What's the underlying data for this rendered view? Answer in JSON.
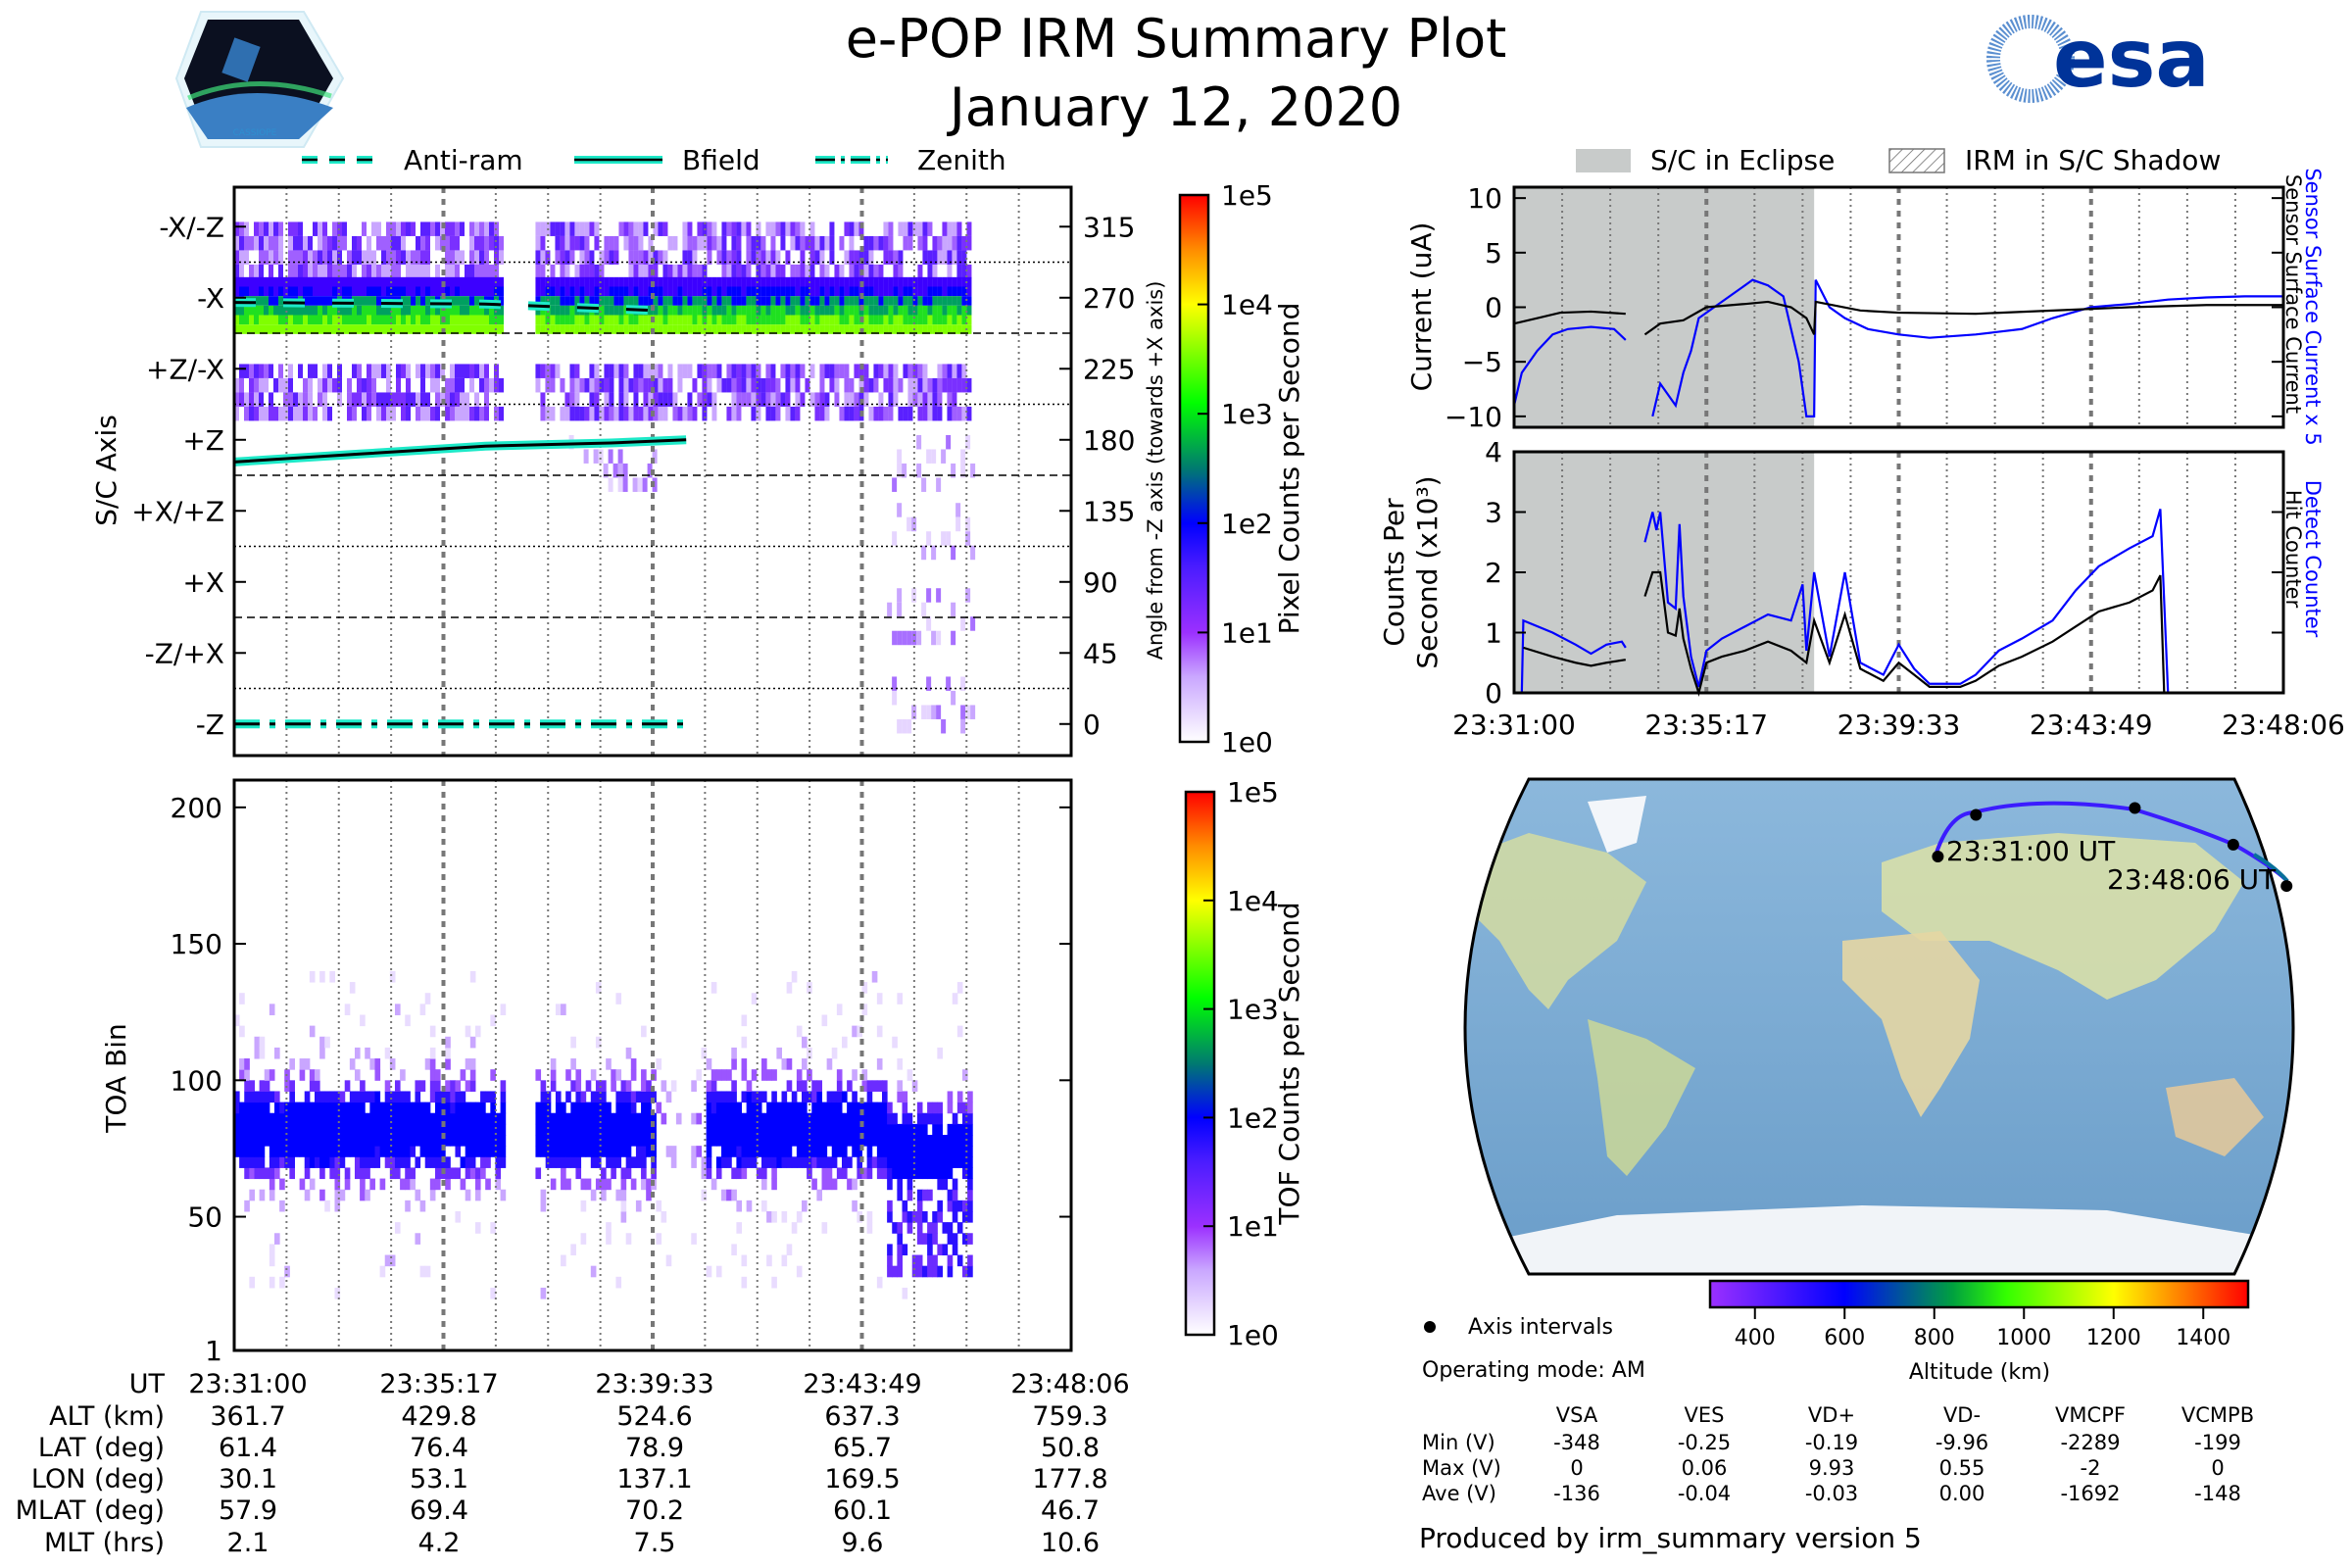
{
  "header": {
    "title": "e-POP IRM Summary Plot",
    "date": "January 12, 2020",
    "left_logo": "CASSIOPE",
    "right_logo": "esa"
  },
  "colors": {
    "teal_line": "#1de9c8",
    "blue_series": "#0000ff",
    "black_series": "#000000",
    "eclipse_shade": "#c8cbca",
    "orbit_track": "#3b1cff"
  },
  "chart_data": [
    {
      "id": "sc_axis_spectrogram",
      "type": "heatmap",
      "ylabel": "S/C Axis",
      "ylabel_right": "Angle from -Z axis (towards +X axis)",
      "y_categories": [
        "-X/-Z",
        "-X",
        "+Z/-X",
        "+Z",
        "+X/+Z",
        "+X",
        "-Z/+X",
        "-Z"
      ],
      "y_right_ticks": [
        315,
        270,
        225,
        180,
        135,
        90,
        45,
        0
      ],
      "ylim": [
        -20,
        340
      ],
      "legend": [
        {
          "label": "Anti-ram",
          "style": "dashed"
        },
        {
          "label": "Bfield",
          "style": "solid"
        },
        {
          "label": "Zenith",
          "style": "dashdot"
        }
      ],
      "colorbar": {
        "label": "Pixel Counts per Second",
        "scale": "log",
        "ticks": [
          "1e0",
          "1e1",
          "1e2",
          "1e3",
          "1e4",
          "1e5"
        ]
      },
      "bands": [
        {
          "angle_center": 300,
          "intensity": "low",
          "x_ranges": [
            [
              0,
              0.32
            ],
            [
              0.36,
              0.88
            ]
          ]
        },
        {
          "angle_center": 265,
          "intensity": "high",
          "x_ranges": [
            [
              0,
              0.32
            ],
            [
              0.36,
              0.88
            ]
          ]
        },
        {
          "angle_center": 210,
          "intensity": "low",
          "x_ranges": [
            [
              0,
              0.32
            ],
            [
              0.36,
              0.88
            ]
          ]
        },
        {
          "angle_center": 165,
          "intensity": "very_low",
          "x_ranges": [
            [
              0.4,
              0.5
            ],
            [
              0.78,
              0.88
            ]
          ]
        },
        {
          "angle_center": 122,
          "intensity": "very_low",
          "x_ranges": [
            [
              0.78,
              0.88
            ]
          ]
        },
        {
          "angle_center": 68,
          "intensity": "very_low",
          "x_ranges": [
            [
              0.78,
              0.88
            ]
          ]
        },
        {
          "angle_center": 12,
          "intensity": "very_low",
          "x_ranges": [
            [
              0.78,
              0.88
            ]
          ]
        }
      ],
      "lines": [
        {
          "name": "Anti-ram",
          "points": [
            [
              0,
              267
            ],
            [
              0.3,
              266
            ],
            [
              0.5,
              262
            ]
          ]
        },
        {
          "name": "Bfield",
          "points": [
            [
              0,
              166
            ],
            [
              0.15,
              171
            ],
            [
              0.3,
              176
            ],
            [
              0.45,
              178
            ],
            [
              0.54,
              180
            ]
          ]
        },
        {
          "name": "Zenith",
          "points": [
            [
              0,
              0
            ],
            [
              0.54,
              0
            ]
          ]
        }
      ]
    },
    {
      "id": "toa_spectrogram",
      "type": "heatmap",
      "ylabel": "TOA Bin",
      "yticks": [
        1,
        50,
        100,
        150,
        200
      ],
      "ylim": [
        1,
        210
      ],
      "colorbar": {
        "label": "TOF Counts per Second",
        "scale": "log",
        "ticks": [
          "1e0",
          "1e1",
          "1e2",
          "1e3",
          "1e4",
          "1e5"
        ]
      },
      "band": {
        "center": 80,
        "half_width": 20
      },
      "gaps": [
        [
          0.32,
          0.36
        ],
        [
          0.53,
          0.545
        ]
      ],
      "data_end": 0.88
    },
    {
      "id": "surface_current",
      "type": "line",
      "ylabel": "Current (uA)",
      "yticks": [
        10,
        5,
        0,
        -5,
        -10
      ],
      "ylim": [
        -11,
        11
      ],
      "right_labels": [
        "Sensor Surface Current x 5",
        "Sensor Surface Current"
      ],
      "legend": [
        {
          "label": "S/C in Eclipse",
          "style": "shade"
        },
        {
          "label": "IRM in S/C Shadow",
          "style": "hatch"
        }
      ],
      "eclipse_range": [
        0,
        0.39
      ],
      "series": [
        {
          "name": "Sensor Surface Current x 5",
          "color": "#0000ff",
          "points": [
            [
              0,
              -9
            ],
            [
              0.01,
              -6
            ],
            [
              0.03,
              -4
            ],
            [
              0.05,
              -2.5
            ],
            [
              0.07,
              -2
            ],
            [
              0.1,
              -1.8
            ],
            [
              0.13,
              -2
            ],
            [
              0.145,
              -3
            ],
            null,
            [
              0.18,
              -10
            ],
            [
              0.19,
              -7
            ],
            [
              0.2,
              -8
            ],
            [
              0.21,
              -9
            ],
            [
              0.22,
              -6
            ],
            [
              0.23,
              -4
            ],
            [
              0.24,
              -1
            ],
            [
              0.26,
              0
            ],
            [
              0.28,
              1
            ],
            [
              0.3,
              2
            ],
            [
              0.31,
              2.5
            ],
            [
              0.33,
              2
            ],
            [
              0.35,
              1
            ],
            [
              0.36,
              -2
            ],
            [
              0.37,
              -5
            ],
            [
              0.38,
              -10
            ],
            [
              0.39,
              -10
            ],
            [
              0.392,
              2.5
            ],
            [
              0.41,
              0
            ],
            [
              0.43,
              -1
            ],
            [
              0.46,
              -2
            ],
            [
              0.5,
              -2.5
            ],
            [
              0.54,
              -2.8
            ],
            [
              0.6,
              -2.5
            ],
            [
              0.66,
              -2
            ],
            [
              0.7,
              -1
            ],
            [
              0.75,
              0
            ],
            [
              0.8,
              0.3
            ],
            [
              0.85,
              0.7
            ],
            [
              0.9,
              0.9
            ],
            [
              0.95,
              1
            ],
            [
              1,
              1
            ]
          ]
        },
        {
          "name": "Sensor Surface Current",
          "color": "#000000",
          "points": [
            [
              0,
              -1.5
            ],
            [
              0.03,
              -1
            ],
            [
              0.06,
              -0.5
            ],
            [
              0.1,
              -0.4
            ],
            [
              0.145,
              -0.6
            ],
            null,
            [
              0.17,
              -2.5
            ],
            [
              0.19,
              -1.5
            ],
            [
              0.22,
              -1.2
            ],
            [
              0.25,
              0
            ],
            [
              0.3,
              0.3
            ],
            [
              0.33,
              0.5
            ],
            [
              0.36,
              0
            ],
            [
              0.38,
              -1
            ],
            [
              0.39,
              -2.5
            ],
            [
              0.392,
              0.5
            ],
            [
              0.45,
              -0.3
            ],
            [
              0.5,
              -0.5
            ],
            [
              0.6,
              -0.6
            ],
            [
              0.7,
              -0.3
            ],
            [
              0.8,
              0
            ],
            [
              0.9,
              0.2
            ],
            [
              1,
              0.2
            ]
          ]
        }
      ]
    },
    {
      "id": "counts",
      "type": "line",
      "ylabel": "Counts Per Second (x10³)",
      "yticks": [
        0,
        1,
        2,
        3,
        4
      ],
      "ylim": [
        0,
        4
      ],
      "right_labels": [
        "Detect Counter",
        "Hit Counter"
      ],
      "eclipse_range": [
        0,
        0.39
      ],
      "xticks": [
        "23:31:00",
        "23:35:17",
        "23:39:33",
        "23:43:49",
        "23:48:06"
      ],
      "series": [
        {
          "name": "Detect Counter",
          "color": "#0000ff",
          "points": [
            [
              0,
              0
            ],
            [
              0.01,
              0
            ],
            [
              0.012,
              1.2
            ],
            [
              0.05,
              1
            ],
            [
              0.08,
              0.8
            ],
            [
              0.1,
              0.65
            ],
            [
              0.12,
              0.8
            ],
            [
              0.14,
              0.85
            ],
            [
              0.145,
              0.75
            ],
            null,
            [
              0.17,
              2.5
            ],
            [
              0.18,
              3
            ],
            [
              0.185,
              2.7
            ],
            [
              0.19,
              3
            ],
            [
              0.2,
              1.5
            ],
            [
              0.21,
              1.4
            ],
            [
              0.215,
              2.8
            ],
            [
              0.22,
              1.6
            ],
            [
              0.23,
              0.6
            ],
            [
              0.24,
              0.1
            ],
            [
              0.25,
              0.7
            ],
            [
              0.27,
              0.9
            ],
            [
              0.3,
              1.1
            ],
            [
              0.33,
              1.3
            ],
            [
              0.36,
              1.2
            ],
            [
              0.375,
              1.8
            ],
            [
              0.38,
              0.7
            ],
            [
              0.39,
              2
            ],
            [
              0.41,
              0.6
            ],
            [
              0.43,
              2
            ],
            [
              0.45,
              0.5
            ],
            [
              0.48,
              0.3
            ],
            [
              0.5,
              0.8
            ],
            [
              0.52,
              0.4
            ],
            [
              0.54,
              0.15
            ],
            [
              0.58,
              0.15
            ],
            [
              0.6,
              0.3
            ],
            [
              0.63,
              0.7
            ],
            [
              0.66,
              0.9
            ],
            [
              0.7,
              1.2
            ],
            [
              0.73,
              1.7
            ],
            [
              0.76,
              2.1
            ],
            [
              0.8,
              2.4
            ],
            [
              0.83,
              2.6
            ],
            [
              0.84,
              3.05
            ],
            [
              0.85,
              0
            ],
            [
              1,
              0
            ]
          ]
        },
        {
          "name": "Hit Counter",
          "color": "#000000",
          "points": [
            [
              0.012,
              0.75
            ],
            [
              0.05,
              0.6
            ],
            [
              0.08,
              0.5
            ],
            [
              0.1,
              0.45
            ],
            [
              0.12,
              0.5
            ],
            [
              0.145,
              0.55
            ],
            null,
            [
              0.17,
              1.6
            ],
            [
              0.18,
              2
            ],
            [
              0.19,
              2
            ],
            [
              0.2,
              1
            ],
            [
              0.21,
              0.95
            ],
            [
              0.215,
              1.4
            ],
            [
              0.22,
              0.9
            ],
            [
              0.23,
              0.4
            ],
            [
              0.24,
              0
            ],
            [
              0.25,
              0.5
            ],
            [
              0.27,
              0.6
            ],
            [
              0.3,
              0.7
            ],
            [
              0.33,
              0.85
            ],
            [
              0.36,
              0.7
            ],
            [
              0.38,
              0.5
            ],
            [
              0.39,
              1.2
            ],
            [
              0.41,
              0.5
            ],
            [
              0.43,
              1.3
            ],
            [
              0.45,
              0.4
            ],
            [
              0.48,
              0.2
            ],
            [
              0.5,
              0.5
            ],
            [
              0.52,
              0.3
            ],
            [
              0.54,
              0.1
            ],
            [
              0.58,
              0.1
            ],
            [
              0.6,
              0.2
            ],
            [
              0.63,
              0.45
            ],
            [
              0.66,
              0.6
            ],
            [
              0.7,
              0.85
            ],
            [
              0.73,
              1.1
            ],
            [
              0.76,
              1.35
            ],
            [
              0.8,
              1.5
            ],
            [
              0.83,
              1.7
            ],
            [
              0.84,
              1.95
            ],
            [
              0.845,
              0
            ]
          ]
        }
      ]
    },
    {
      "id": "orbit_map",
      "type": "scatter",
      "annotations": [
        "23:31:00 UT",
        "23:48:06 UT"
      ],
      "track_lonlat": [
        [
          30.1,
          61.4
        ],
        [
          53.1,
          76.4
        ],
        [
          137.1,
          78.9
        ],
        [
          169.5,
          65.7
        ],
        [
          177.8,
          50.8
        ]
      ],
      "colorbar": {
        "label": "Altitude (km)",
        "ticks": [
          400,
          600,
          800,
          1000,
          1200,
          1400
        ],
        "range": [
          300,
          1500
        ]
      },
      "legend": [
        {
          "label": "Axis intervals",
          "marker": "dot"
        }
      ]
    }
  ],
  "bottom_table": {
    "row_labels": [
      "UT",
      "ALT (km)",
      "LAT (deg)",
      "LON (deg)",
      "MLAT (deg)",
      "MLT (hrs)"
    ],
    "columns": [
      [
        "23:31:00",
        "361.7",
        "61.4",
        "30.1",
        "57.9",
        "2.1"
      ],
      [
        "23:35:17",
        "429.8",
        "76.4",
        "53.1",
        "69.4",
        "4.2"
      ],
      [
        "23:39:33",
        "524.6",
        "78.9",
        "137.1",
        "70.2",
        "7.5"
      ],
      [
        "23:43:49",
        "637.3",
        "65.7",
        "169.5",
        "60.1",
        "9.6"
      ],
      [
        "23:48:06",
        "759.3",
        "50.8",
        "177.8",
        "46.7",
        "10.6"
      ]
    ]
  },
  "info": {
    "operating_mode": "Operating mode: AM",
    "produced_by": "Produced by irm_summary version 5"
  },
  "voltage_table": {
    "headers": [
      "VSA",
      "VES",
      "VD+",
      "VD-",
      "VMCPF",
      "VCMPB"
    ],
    "rows": [
      {
        "label": "Min (V)",
        "values": [
          "-348",
          "-0.25",
          "-0.19",
          "-9.96",
          "-2289",
          "-199"
        ]
      },
      {
        "label": "Max (V)",
        "values": [
          "0",
          "0.06",
          "9.93",
          "0.55",
          "-2",
          "0"
        ]
      },
      {
        "label": "Ave (V)",
        "values": [
          "-136",
          "-0.04",
          "-0.03",
          "0.00",
          "-1692",
          "-148"
        ]
      }
    ]
  }
}
